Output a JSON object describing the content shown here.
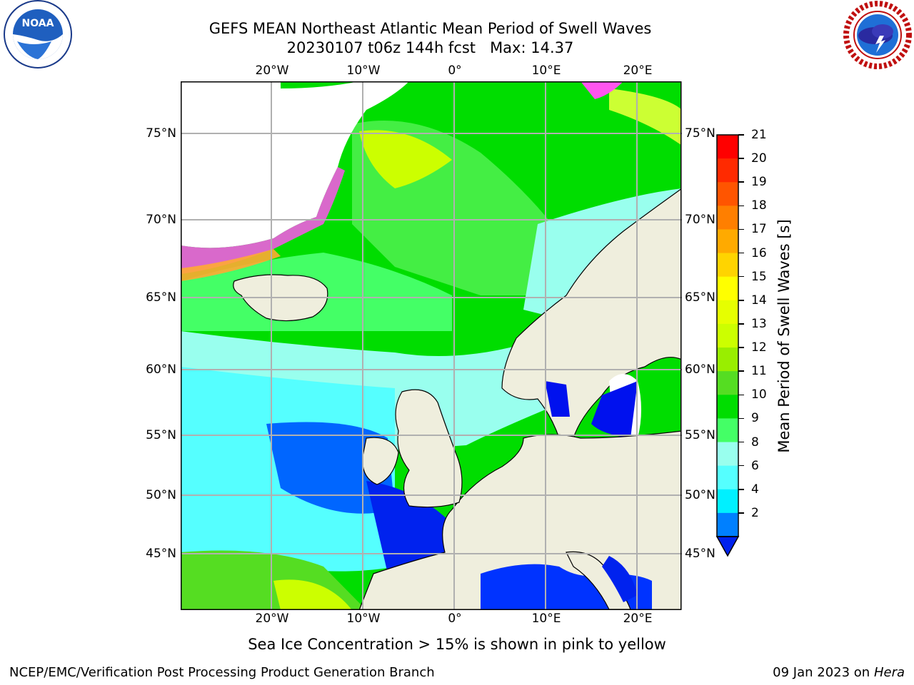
{
  "header": {
    "title_line1": "GEFS MEAN Northeast Atlantic Mean Period of Swell Waves",
    "title_line2": "20230107 t06z 144h fcst   Max: 14.37"
  },
  "logos": {
    "left": {
      "text": "NOAA",
      "icon": "noaa-logo"
    },
    "right": {
      "text": "NATIONAL WEATHER SERVICE",
      "icon": "nws-logo"
    }
  },
  "map": {
    "lon_labels": [
      "20°W",
      "10°W",
      "0°",
      "10°E",
      "20°E"
    ],
    "lat_labels_left": [
      "75°N",
      "70°N",
      "65°N",
      "60°N",
      "55°N",
      "50°N",
      "45°N"
    ],
    "lat_labels_right": [
      "75°N",
      "70°N",
      "65°N",
      "60°N",
      "55°N",
      "50°N",
      "45°N"
    ],
    "colors": {
      "land": "#efeedd",
      "grid": "#b0b0b0",
      "ice_pink": "#ff55ee",
      "ice_yellow": "#ffee44"
    }
  },
  "colorbar": {
    "label": "Mean Period of Swell Waves [s]",
    "ticks": [
      "21",
      "20",
      "19",
      "18",
      "17",
      "16",
      "15",
      "14",
      "13",
      "12",
      "11",
      "10",
      "9",
      "8",
      "6",
      "4",
      "2"
    ],
    "colors": [
      "#ff0000",
      "#ff2a00",
      "#ff5500",
      "#ff7f00",
      "#ffaa00",
      "#ffd400",
      "#ffff00",
      "#e6ff00",
      "#ccff00",
      "#99ee00",
      "#55dd22",
      "#00dd00",
      "#44ff66",
      "#99ffee",
      "#55ffff",
      "#00f0ff",
      "#0080ff",
      "#0033ff"
    ]
  },
  "notes": {
    "sea_ice": "Sea Ice Concentration > 15% is shown in pink to yellow"
  },
  "footer": {
    "left": "NCEP/EMC/Verification Post Processing Product Generation Branch",
    "right_date": "09 Jan 2023 on ",
    "right_host": "Hera"
  }
}
